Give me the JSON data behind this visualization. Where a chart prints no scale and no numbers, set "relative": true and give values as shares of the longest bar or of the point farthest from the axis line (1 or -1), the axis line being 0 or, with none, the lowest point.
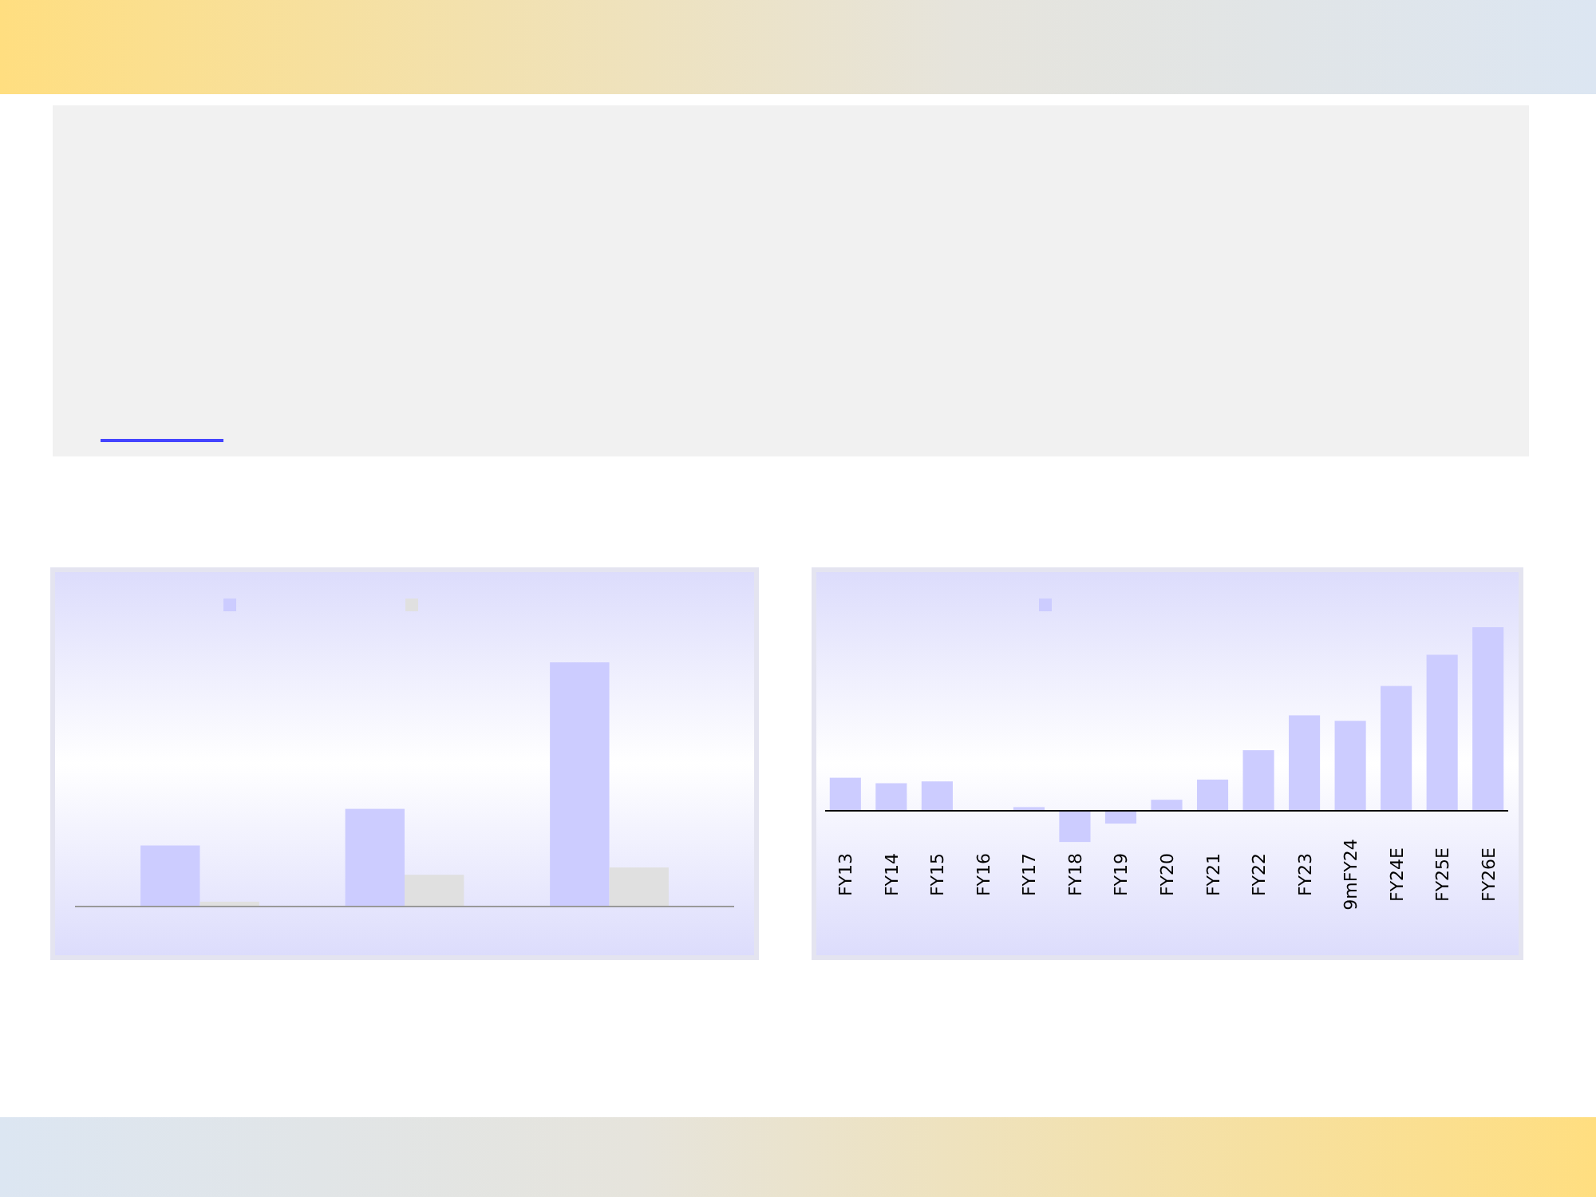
{
  "chart_data": [
    {
      "type": "bar",
      "relative": true,
      "categories": [
        null,
        null,
        null
      ],
      "series": [
        {
          "color": "#ccccff",
          "values": [
            0.25,
            0.4,
            1.0
          ]
        },
        {
          "color": "#e0e0e0",
          "values": [
            0.02,
            0.13,
            0.16
          ]
        }
      ]
    },
    {
      "type": "bar",
      "relative": true,
      "categories": [
        "FY13",
        "FY14",
        "FY15",
        "FY16",
        "FY17",
        "FY18",
        "FY19",
        "FY20",
        "FY21",
        "FY22",
        "FY23",
        "9mFY24",
        "FY24E",
        "FY25E",
        "FY26E"
      ],
      "series": [
        {
          "color": "#ccccff",
          "values": [
            0.18,
            0.15,
            0.16,
            0,
            0.02,
            -0.17,
            -0.07,
            0.06,
            0.17,
            0.33,
            0.52,
            0.49,
            0.68,
            0.85,
            1.0
          ]
        }
      ]
    }
  ]
}
